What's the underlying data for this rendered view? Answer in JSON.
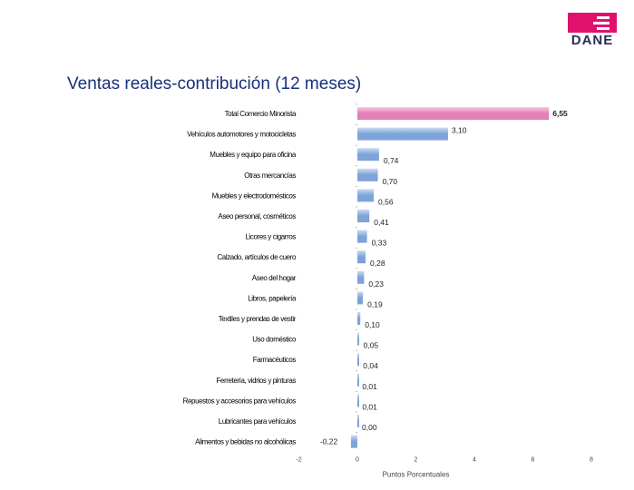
{
  "logo": {
    "text": "DANE"
  },
  "chart_data": {
    "type": "bar",
    "orientation": "horizontal",
    "title": "Ventas reales-contribución (12 meses)",
    "xlabel": "Puntos Porcentuales",
    "ylabel": "",
    "xlim": [
      -2,
      8
    ],
    "xticks": [
      -2,
      0,
      2,
      4,
      6,
      8
    ],
    "categories": [
      "Total Comercio Minorista",
      "Vehículos automotores y motocicletas",
      "Muebles y equipo para oficina",
      "Otras mercancías",
      "Muebles y electrodomésticos",
      "Aseo personal, cosméticos",
      "Licores y cigarros",
      "Calzado, artículos de cuero",
      "Aseo del hogar",
      "Libros, papelería",
      "Textiles y prendas de vestir",
      "Uso doméstico",
      "Farmacéuticos",
      "Ferretería, vidrios y pinturas",
      "Repuestos y accesorios para vehículos",
      "Lubricantes para vehículos",
      "Alimentos y bebidas no alcohólicas"
    ],
    "values": [
      6.55,
      3.1,
      0.74,
      0.7,
      0.56,
      0.41,
      0.33,
      0.28,
      0.23,
      0.19,
      0.1,
      0.05,
      0.04,
      0.01,
      0.01,
      0.0,
      -0.22
    ],
    "value_labels": [
      "6,55",
      "3,10",
      "0,74",
      "0,70",
      "0,56",
      "0,41",
      "0,33",
      "0,28",
      "0,23",
      "0,19",
      "0,10",
      "0,05",
      "0,04",
      "0,01",
      "0,01",
      "0,00",
      "-0,22"
    ],
    "highlight_index": 0,
    "colors": {
      "highlight": "#e27fb6",
      "bar": "#7ea3d9",
      "bar_light": "#c9dbf2",
      "highlight_light": "#f6c9e1"
    },
    "grid": false,
    "legend": "none"
  }
}
